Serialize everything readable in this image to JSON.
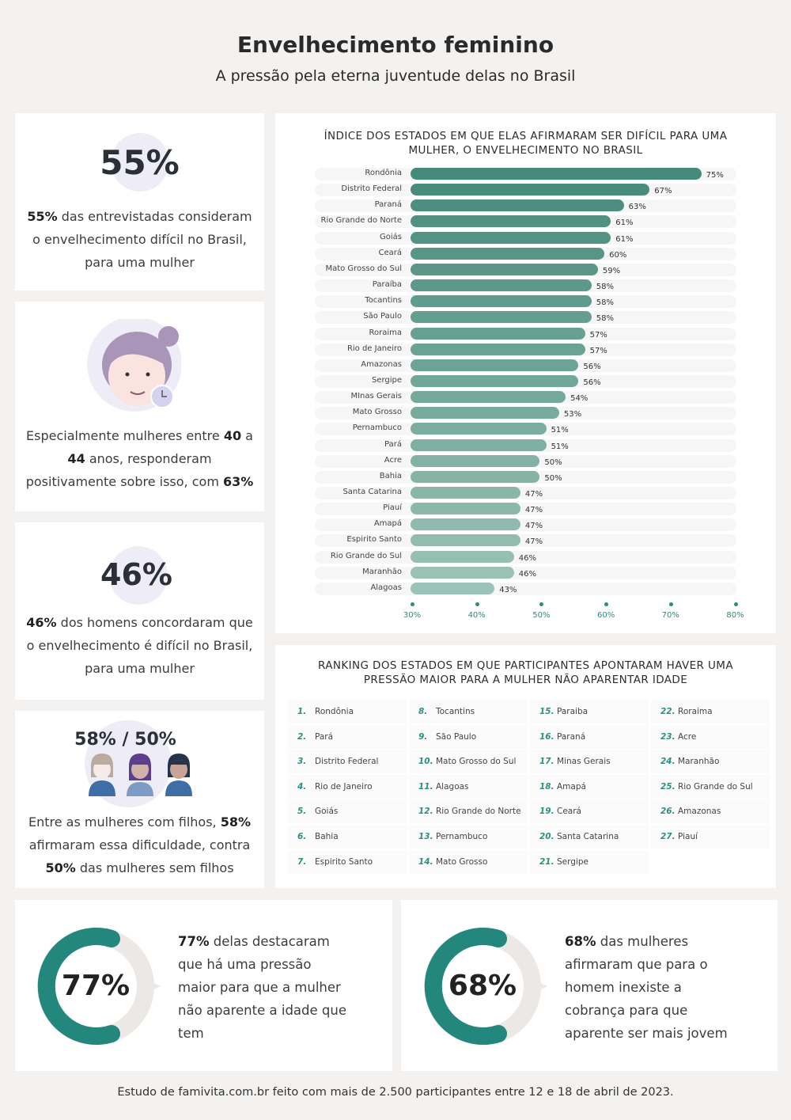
{
  "header": {
    "title": "Envelhecimento feminino",
    "subtitle": "A pressão pela eterna juventude delas no Brasil"
  },
  "stats": {
    "s1": {
      "big": "55%",
      "bold": "55%",
      "text": " das entrevistadas consideram o envelhecimento difícil no Brasil, para uma mulher"
    },
    "s2": {
      "t1": "Especialmente mulheres entre ",
      "b1": "40",
      "t2": " a ",
      "b2": "44",
      "t3": " anos, responderam positivamente sobre isso, com ",
      "b3": "63%"
    },
    "s3": {
      "big": "46%",
      "bold": "46%",
      "text": " dos homens concordaram que o envelhecimento é difícil no Brasil, para uma mulher"
    },
    "s4": {
      "big": "58% / 50%",
      "t1": "Entre as mulheres com filhos, ",
      "b1": "58%",
      "t2": " afirmaram essa dificuldade, contra ",
      "b2": "50%",
      "t3": " das mulheres sem filhos"
    }
  },
  "chart_data": {
    "type": "bar",
    "orientation": "horizontal",
    "title": "ÍNDICE DOS ESTADOS EM QUE ELAS AFIRMARAM SER DIFÍCIL PARA UMA MULHER, O ENVELHECIMENTO NO BRASIL",
    "categories": [
      "Rondônia",
      "Distrito Federal",
      "Paraná",
      "Rio Grande do Norte",
      "Goiás",
      "Ceará",
      "Mato Grosso do Sul",
      "Paraíba",
      "Tocantins",
      "São Paulo",
      "Roraima",
      "Rio de Janeiro",
      "Amazonas",
      "Sergipe",
      "MInas Gerais",
      "Mato Grosso",
      "Pernambuco",
      "Pará",
      "Acre",
      "Bahia",
      "Santa Catarina",
      "Piauí",
      "Amapá",
      "Espirito Santo",
      "Rio Grande do Sul",
      "Maranhão",
      "Alagoas"
    ],
    "values": [
      75,
      67,
      63,
      61,
      61,
      60,
      59,
      58,
      58,
      58,
      57,
      57,
      56,
      56,
      54,
      53,
      51,
      51,
      50,
      50,
      47,
      47,
      47,
      47,
      46,
      46,
      43
    ],
    "value_labels": [
      "75%",
      "67%",
      "63%",
      "61%",
      "61%",
      "60%",
      "59%",
      "58%",
      "58%",
      "58%",
      "57%",
      "57%",
      "56%",
      "56%",
      "54%",
      "53%",
      "51%",
      "51%",
      "50%",
      "50%",
      "47%",
      "47%",
      "47%",
      "47%",
      "46%",
      "46%",
      "43%"
    ],
    "xticks": [
      30,
      40,
      50,
      60,
      70,
      80
    ],
    "xtick_labels": [
      "30%",
      "40%",
      "50%",
      "60%",
      "70%",
      "80%"
    ],
    "xlim": [
      30,
      80
    ],
    "colors": {
      "dark": "#468a7b",
      "light": "#9cc3b7"
    }
  },
  "ranking": {
    "title": "RANKING DOS ESTADOS EM QUE PARTICIPANTES APONTARAM HAVER UMA PRESSÃO MAIOR PARA A MULHER NÃO APARENTAR IDADE",
    "items": [
      {
        "n": "1.",
        "s": "Rondônia"
      },
      {
        "n": "2.",
        "s": "Pará"
      },
      {
        "n": "3.",
        "s": "Distrito Federal"
      },
      {
        "n": "4.",
        "s": "Rio de Janeiro"
      },
      {
        "n": "5.",
        "s": "Goiás"
      },
      {
        "n": "6.",
        "s": "Bahia"
      },
      {
        "n": "7.",
        "s": "Espirito Santo"
      },
      {
        "n": "8.",
        "s": "Tocantins"
      },
      {
        "n": "9.",
        "s": "São Paulo"
      },
      {
        "n": "10.",
        "s": "Mato Grosso do Sul"
      },
      {
        "n": "11.",
        "s": "Alagoas"
      },
      {
        "n": "12.",
        "s": "Rio Grande do Norte"
      },
      {
        "n": "13.",
        "s": "Pernambuco"
      },
      {
        "n": "14.",
        "s": "Mato Grosso"
      },
      {
        "n": "15.",
        "s": "Paraiba"
      },
      {
        "n": "16.",
        "s": "Paraná"
      },
      {
        "n": "17.",
        "s": "Minas Gerais"
      },
      {
        "n": "18.",
        "s": "Amapá"
      },
      {
        "n": "19.",
        "s": "Ceará"
      },
      {
        "n": "20.",
        "s": "Santa Catarina"
      },
      {
        "n": "21.",
        "s": "Sergipe"
      },
      {
        "n": "22.",
        "s": "Roraima"
      },
      {
        "n": "23.",
        "s": "Acre"
      },
      {
        "n": "24.",
        "s": "Maranhão"
      },
      {
        "n": "25.",
        "s": "Rio Grande do Sul"
      },
      {
        "n": "26.",
        "s": "Amazonas"
      },
      {
        "n": "27.",
        "s": "Piauí"
      }
    ]
  },
  "donuts": [
    {
      "big": "77%",
      "bold": "77%",
      "text": " delas destacaram que há uma pressão maior para que a mulher não aparente a idade que tem"
    },
    {
      "big": "68%",
      "bold": "68%",
      "text": " das mulheres afirmaram que para o homem inexiste a cobrança para que aparente ser mais jovem"
    }
  ],
  "colors": {
    "teal": "#23877d",
    "track": "#ebe8e5",
    "background": "#f4f2f0"
  },
  "footer": "Estudo de famivita.com.br feito com mais de 2.500 participantes entre 12 e 18 de abril de 2023."
}
